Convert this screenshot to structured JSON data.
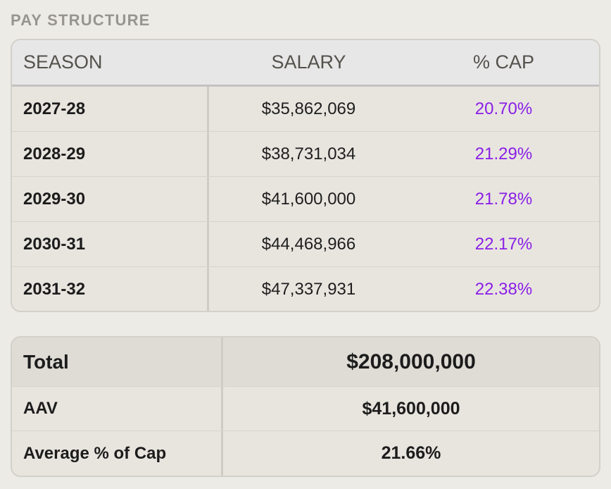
{
  "section": {
    "title": "PAY STRUCTURE"
  },
  "pay_table": {
    "headers": {
      "season": "SEASON",
      "salary": "SALARY",
      "cap": "% CAP"
    },
    "rows": [
      {
        "season": "2027-28",
        "salary": "$35,862,069",
        "cap": "20.70%"
      },
      {
        "season": "2028-29",
        "salary": "$38,731,034",
        "cap": "21.29%"
      },
      {
        "season": "2029-30",
        "salary": "$41,600,000",
        "cap": "21.78%"
      },
      {
        "season": "2030-31",
        "salary": "$44,468,966",
        "cap": "22.17%"
      },
      {
        "season": "2031-32",
        "salary": "$47,337,931",
        "cap": "22.38%"
      }
    ]
  },
  "summary": {
    "total": {
      "label": "Total",
      "value": "$208,000,000"
    },
    "aav": {
      "label": "AAV",
      "value": "$41,600,000"
    },
    "avg_cap": {
      "label": "Average % of Cap",
      "value": "21.66%"
    }
  },
  "colors": {
    "accent_percent": "#8a1fe6",
    "background": "#edebe6",
    "section_title": "#979590"
  }
}
